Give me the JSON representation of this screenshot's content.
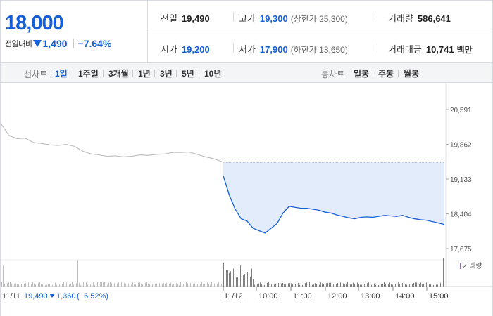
{
  "summary": {
    "current_price": "18,000",
    "change_label": "전일대비",
    "change_amount": "1,490",
    "change_percent": "−7.64%",
    "prev_close_label": "전일",
    "prev_close": "19,490",
    "open_label": "시가",
    "open": "19,200",
    "high_label": "고가",
    "high": "19,300",
    "upper_limit": "(상한가 25,300)",
    "low_label": "저가",
    "low": "17,900",
    "lower_limit": "(하한가 13,650)",
    "volume_label": "거래량",
    "volume": "586,641",
    "amount_label": "거래대금",
    "amount": "10,741",
    "amount_unit": "백만"
  },
  "tabs": {
    "line_label": "선차트",
    "line_items": [
      "1일",
      "1주일",
      "3개월",
      "1년",
      "3년",
      "5년",
      "10년"
    ],
    "active_index": 0,
    "candle_label": "봉차트",
    "candle_items": [
      "일봉",
      "주봉",
      "월봉"
    ]
  },
  "colors": {
    "accent_blue": "#1560d6",
    "fill_blue": "#e3ecfa",
    "prev_line": "#c0c0c0",
    "volume_prev": "#bdbdbd",
    "volume_today": "#8a6fb8"
  },
  "chart_data": {
    "type": "line",
    "y_ticks": [
      "20,591",
      "19,862",
      "19,133",
      "18,404",
      "17,675"
    ],
    "ylim": [
      17675,
      20591
    ],
    "x_labels": [
      "11/12",
      "10:00",
      "11:00",
      "12:00",
      "13:00",
      "14:00",
      "15:00"
    ],
    "prev_day_label": "11/11",
    "prev_day_close": "19,490",
    "prev_day_change": "1,360",
    "prev_day_change_pct": "(−6.52%)",
    "volume_legend": "거래량",
    "baseline_prev_close": 19490,
    "prev_day_series": [
      20300,
      20050,
      19980,
      19990,
      19900,
      19880,
      19850,
      19840,
      19860,
      19820,
      19720,
      19660,
      19640,
      19610,
      19620,
      19600,
      19610,
      19640,
      19630,
      19650,
      19660,
      19690,
      19690,
      19700,
      19650,
      19600,
      19560,
      19500
    ],
    "today_series": [
      19200,
      18800,
      18500,
      18300,
      18250,
      18100,
      18050,
      18000,
      18100,
      18200,
      18420,
      18560,
      18540,
      18520,
      18520,
      18500,
      18480,
      18440,
      18420,
      18380,
      18350,
      18320,
      18300,
      18330,
      18340,
      18330,
      18350,
      18370,
      18360,
      18350,
      18370,
      18330,
      18300,
      18280,
      18270,
      18240,
      18210,
      18180
    ]
  }
}
